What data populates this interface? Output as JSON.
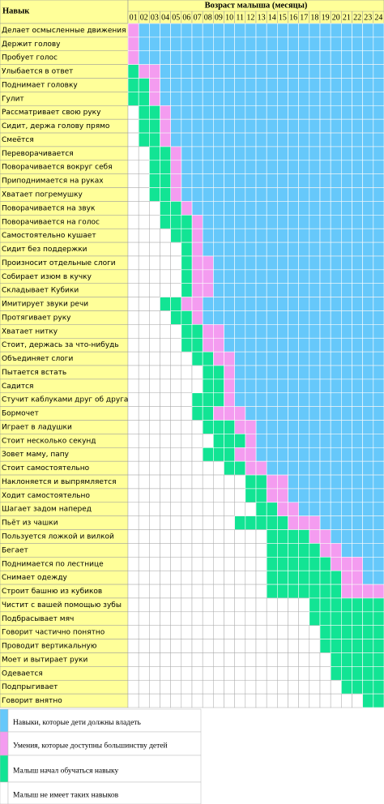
{
  "header": {
    "skill": "Навык",
    "age": "Возраст малыша (месяцы)",
    "months": [
      "01",
      "02",
      "03",
      "04",
      "05",
      "06",
      "07",
      "08",
      "09",
      "10",
      "11",
      "12",
      "13",
      "14",
      "15",
      "16",
      "17",
      "18",
      "19",
      "20",
      "21",
      "22",
      "23",
      "24"
    ]
  },
  "legend": {
    "should": {
      "label": "Навыки, которые дети должны владеть",
      "color": "#66c8fa"
    },
    "most": {
      "label": "Умения, которые доступны большинству детей",
      "color": "#f49cf0"
    },
    "learning": {
      "label": "Малыш начал обучаться навыку",
      "color": "#12e494"
    },
    "none": {
      "label": "Малыш не имеет таких навыков",
      "color": "#ffffff"
    }
  },
  "rows": [
    {
      "skill": "Делает осмысленные движения",
      "most": [
        1,
        1
      ],
      "should": [
        2,
        24
      ]
    },
    {
      "skill": "Держит голову",
      "most": [
        1,
        1
      ],
      "should": [
        2,
        24
      ]
    },
    {
      "skill": "Пробует голос",
      "most": [
        1,
        1
      ],
      "should": [
        2,
        24
      ]
    },
    {
      "skill": "Улыбается в ответ",
      "learning": [
        1,
        1
      ],
      "most": [
        2,
        3
      ],
      "should": [
        4,
        24
      ]
    },
    {
      "skill": "Поднимает головку",
      "learning": [
        1,
        2
      ],
      "most": [
        3,
        3
      ],
      "should": [
        4,
        24
      ]
    },
    {
      "skill": "Гулит",
      "learning": [
        1,
        2
      ],
      "most": [
        3,
        3
      ],
      "should": [
        4,
        24
      ]
    },
    {
      "skill": "Рассматривает свою руку",
      "learning": [
        2,
        3
      ],
      "most": [
        4,
        4
      ],
      "should": [
        5,
        24
      ]
    },
    {
      "skill": "Сидит, держа голову прямо",
      "learning": [
        2,
        3
      ],
      "most": [
        4,
        4
      ],
      "should": [
        5,
        24
      ]
    },
    {
      "skill": "Смеётся",
      "learning": [
        2,
        3
      ],
      "most": [
        4,
        4
      ],
      "should": [
        5,
        24
      ]
    },
    {
      "skill": "Переворачивается",
      "learning": [
        3,
        4
      ],
      "most": [
        5,
        5
      ],
      "should": [
        6,
        24
      ]
    },
    {
      "skill": "Поворачивается вокруг себя",
      "learning": [
        3,
        4
      ],
      "most": [
        5,
        5
      ],
      "should": [
        6,
        24
      ]
    },
    {
      "skill": "Приподнимается на руках",
      "learning": [
        3,
        4
      ],
      "most": [
        5,
        5
      ],
      "should": [
        6,
        24
      ]
    },
    {
      "skill": "Хватает погремушку",
      "learning": [
        3,
        4
      ],
      "most": [
        5,
        5
      ],
      "should": [
        6,
        24
      ]
    },
    {
      "skill": "Поворачивается на звук",
      "learning": [
        4,
        5
      ],
      "most": [
        6,
        6
      ],
      "should": [
        7,
        24
      ]
    },
    {
      "skill": "Поворачивается на голос",
      "learning": [
        4,
        6
      ],
      "most": [
        7,
        7
      ],
      "should": [
        8,
        24
      ]
    },
    {
      "skill": "Самостоятельно кушает",
      "learning": [
        5,
        6
      ],
      "most": [
        7,
        7
      ],
      "should": [
        8,
        24
      ]
    },
    {
      "skill": "Сидит без поддержки",
      "learning": [
        6,
        6
      ],
      "most": [
        7,
        7
      ],
      "should": [
        8,
        24
      ]
    },
    {
      "skill": "Произносит отдельные слоги",
      "learning": [
        6,
        6
      ],
      "most": [
        7,
        8
      ],
      "should": [
        9,
        24
      ]
    },
    {
      "skill": "Собирает изюм в кучку",
      "learning": [
        6,
        6
      ],
      "most": [
        7,
        8
      ],
      "should": [
        9,
        24
      ]
    },
    {
      "skill": "Складывает Кубики",
      "learning": [
        6,
        6
      ],
      "most": [
        7,
        8
      ],
      "should": [
        9,
        24
      ]
    },
    {
      "skill": "Имитирует звуки речи",
      "learning": [
        4,
        5
      ],
      "most": [
        6,
        7
      ],
      "should": [
        8,
        24
      ]
    },
    {
      "skill": "Протягивает руку",
      "learning": [
        5,
        6
      ],
      "most": [
        7,
        7
      ],
      "should": [
        8,
        24
      ]
    },
    {
      "skill": "Хватает нитку",
      "learning": [
        6,
        7
      ],
      "most": [
        8,
        9
      ],
      "should": [
        10,
        24
      ]
    },
    {
      "skill": "Стоит, держась за что-нибудь",
      "learning": [
        6,
        7
      ],
      "most": [
        8,
        9
      ],
      "should": [
        10,
        24
      ]
    },
    {
      "skill": "Объединяет слоги",
      "learning": [
        7,
        8
      ],
      "most": [
        9,
        10
      ],
      "should": [
        11,
        24
      ]
    },
    {
      "skill": "Пытается встать",
      "learning": [
        8,
        9
      ],
      "most": [
        10,
        10
      ],
      "should": [
        11,
        24
      ]
    },
    {
      "skill": "Садится",
      "learning": [
        8,
        9
      ],
      "most": [
        10,
        10
      ],
      "should": [
        11,
        24
      ]
    },
    {
      "skill": "Стучит каблуками друг об друга",
      "learning": [
        7,
        9
      ],
      "most": [
        10,
        10
      ],
      "should": [
        11,
        24
      ]
    },
    {
      "skill": "Бормочет",
      "learning": [
        7,
        8
      ],
      "most": [
        9,
        11
      ],
      "should": [
        12,
        24
      ]
    },
    {
      "skill": "Играет в ладушки",
      "learning": [
        8,
        10
      ],
      "most": [
        11,
        12
      ],
      "should": [
        13,
        24
      ]
    },
    {
      "skill": "Стоит несколько секунд",
      "learning": [
        9,
        11
      ],
      "most": [
        12,
        12
      ],
      "should": [
        13,
        24
      ]
    },
    {
      "skill": "Зовет маму, папу",
      "learning": [
        8,
        10
      ],
      "most": [
        11,
        12
      ],
      "should": [
        13,
        24
      ]
    },
    {
      "skill": "Стоит самостоятельно",
      "learning": [
        10,
        11
      ],
      "most": [
        12,
        13
      ],
      "should": [
        14,
        24
      ]
    },
    {
      "skill": "Наклоняется и выпрямляется",
      "learning": [
        12,
        13
      ],
      "most": [
        14,
        15
      ],
      "should": [
        16,
        24
      ]
    },
    {
      "skill": "Ходит самостоятельно",
      "learning": [
        12,
        13
      ],
      "most": [
        14,
        15
      ],
      "should": [
        16,
        24
      ]
    },
    {
      "skill": "Шагает задом наперед",
      "learning": [
        13,
        14
      ],
      "most": [
        15,
        16
      ],
      "should": [
        17,
        24
      ]
    },
    {
      "skill": "Пьёт из чашки",
      "learning": [
        11,
        15
      ],
      "most": [
        16,
        18
      ],
      "should": [
        19,
        24
      ]
    },
    {
      "skill": "Пользуется ложкой и вилкой",
      "learning": [
        14,
        17
      ],
      "most": [
        18,
        19
      ],
      "should": [
        20,
        24
      ]
    },
    {
      "skill": "Бегает",
      "learning": [
        14,
        18
      ],
      "most": [
        19,
        20
      ],
      "should": [
        21,
        24
      ]
    },
    {
      "skill": "Поднимается по лестнице",
      "learning": [
        14,
        19
      ],
      "most": [
        20,
        22
      ],
      "should": [
        23,
        24
      ]
    },
    {
      "skill": "Снимает одежду",
      "learning": [
        14,
        20
      ],
      "most": [
        21,
        22
      ],
      "should": [
        23,
        24
      ]
    },
    {
      "skill": "Строит башню из кубиков",
      "learning": [
        14,
        20
      ],
      "most": [
        21,
        24
      ]
    },
    {
      "skill": "Чистит с вашей помощью зубы",
      "learning": [
        18,
        24
      ]
    },
    {
      "skill": "Подбрасывает мяч",
      "learning": [
        18,
        24
      ]
    },
    {
      "skill": "Говорит частично понятно",
      "learning": [
        19,
        24
      ]
    },
    {
      "skill": "Проводит вертикальную",
      "learning": [
        19,
        24
      ]
    },
    {
      "skill": "Моет и вытирает руки",
      "learning": [
        20,
        24
      ]
    },
    {
      "skill": "Одевается",
      "learning": [
        20,
        24
      ]
    },
    {
      "skill": "Подпрыгивает",
      "learning": [
        21,
        24
      ]
    },
    {
      "skill": "Говорит внятно",
      "learning": [
        23,
        24
      ]
    }
  ]
}
